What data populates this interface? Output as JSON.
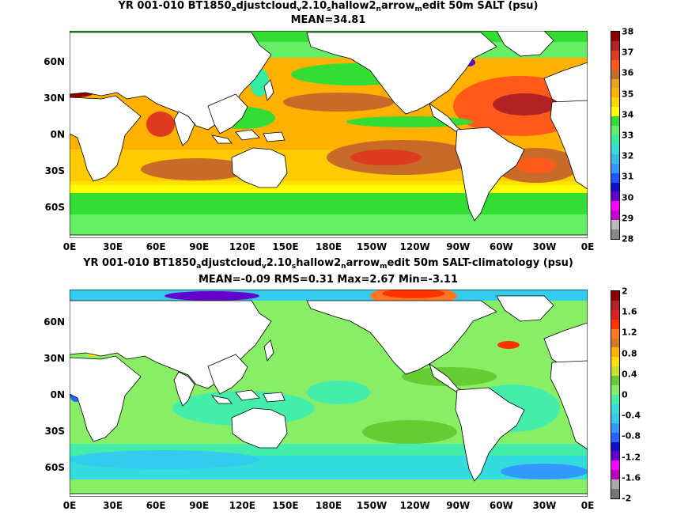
{
  "panels": [
    {
      "title_parts": [
        "YR 001-010 BT1850",
        "a",
        "djustcloud",
        "v",
        "2.10",
        "s",
        "hallow2",
        "n",
        "arrow",
        "m",
        "edit 50m SALT (psu)"
      ],
      "subtitle": "MEAN=34.81",
      "x_ticks": [
        "0E",
        "30E",
        "60E",
        "90E",
        "120E",
        "150E",
        "180E",
        "150W",
        "120W",
        "90W",
        "60W",
        "30W",
        "0E"
      ],
      "y_ticks": [
        "60N",
        "30N",
        "0N",
        "30S",
        "60S"
      ],
      "colorbar_labels": [
        "38",
        "37",
        "36",
        "35",
        "34",
        "33",
        "32",
        "31",
        "30",
        "29",
        "28"
      ],
      "colorbar_colors": [
        "#8b0000",
        "#b22222",
        "#dd3a1e",
        "#ff5a1a",
        "#c96b28",
        "#e7a51e",
        "#ffb000",
        "#ffd500",
        "#ffff00",
        "#33dd33",
        "#66ee66",
        "#33eea0",
        "#33dddd",
        "#33bbee",
        "#3399ff",
        "#2255ff",
        "#1111cc",
        "#6600cc",
        "#ff00ff",
        "#cc00cc",
        "#bbbbbb",
        "#888888"
      ]
    },
    {
      "title_parts": [
        "YR 001-010 BT1850",
        "a",
        "djustcloud",
        "v",
        "2.10",
        "s",
        "hallow2",
        "n",
        "arrow",
        "m",
        "edit 50m SALT-climatology (psu)"
      ],
      "subtitle": "MEAN=-0.09   RMS=0.31   Max=2.67   Min=-3.11",
      "x_ticks": [
        "0E",
        "30E",
        "60E",
        "90E",
        "120E",
        "150E",
        "180E",
        "150W",
        "120W",
        "90W",
        "60W",
        "30W",
        "0E"
      ],
      "y_ticks": [
        "60N",
        "30N",
        "0N",
        "30S",
        "60S"
      ],
      "colorbar_labels": [
        "2",
        "1.6",
        "1.2",
        "0.8",
        "0.4",
        "0",
        "-0.4",
        "-0.8",
        "-1.2",
        "-1.6",
        "-2"
      ],
      "colorbar_colors": [
        "#8b0000",
        "#b22222",
        "#dd2222",
        "#ff3300",
        "#ff7722",
        "#d27a2a",
        "#ffb000",
        "#ffe000",
        "#ccdd33",
        "#66cc33",
        "#88ee66",
        "#44eeaa",
        "#33dddd",
        "#33ccee",
        "#3399ff",
        "#2266ff",
        "#1111cc",
        "#6600cc",
        "#ff00ff",
        "#bb00bb",
        "#aaaaaa",
        "#777777"
      ]
    }
  ]
}
